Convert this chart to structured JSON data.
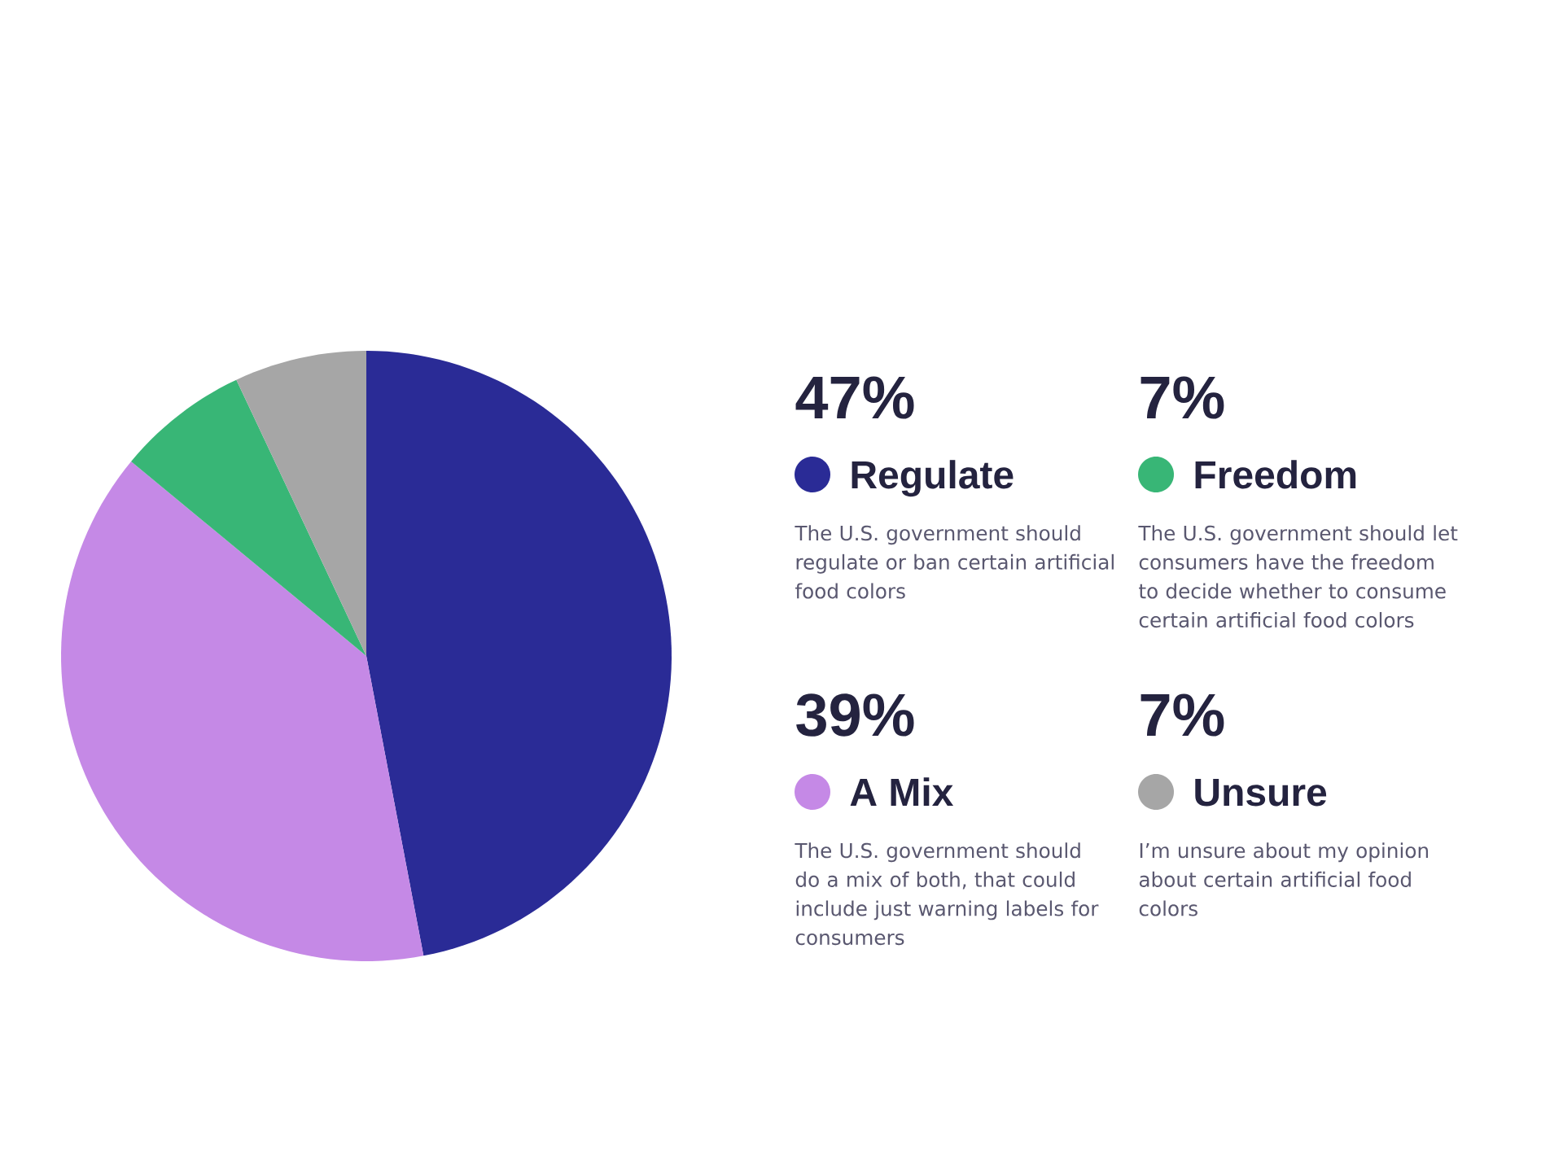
{
  "chart_data": {
    "type": "pie",
    "categories": [
      "Regulate",
      "A Mix",
      "Freedom",
      "Unsure"
    ],
    "values": [
      47,
      39,
      7,
      7
    ],
    "colors": [
      "#2a2b96",
      "#c589e6",
      "#38b676",
      "#a6a6a6"
    ],
    "value_labels": [
      "47%",
      "39%",
      "7%",
      "7%"
    ],
    "legend": "right",
    "annotations": [
      "The U.S. government should regulate or ban certain artificial food colors",
      "The U.S. government should do a mix of both, that could include just warning labels for consumers",
      "The U.S. government should let consumers have the freedom to decide whether to consume certain artificial food colors",
      "I’m unsure about my opinion about certain artificial food colors"
    ]
  }
}
